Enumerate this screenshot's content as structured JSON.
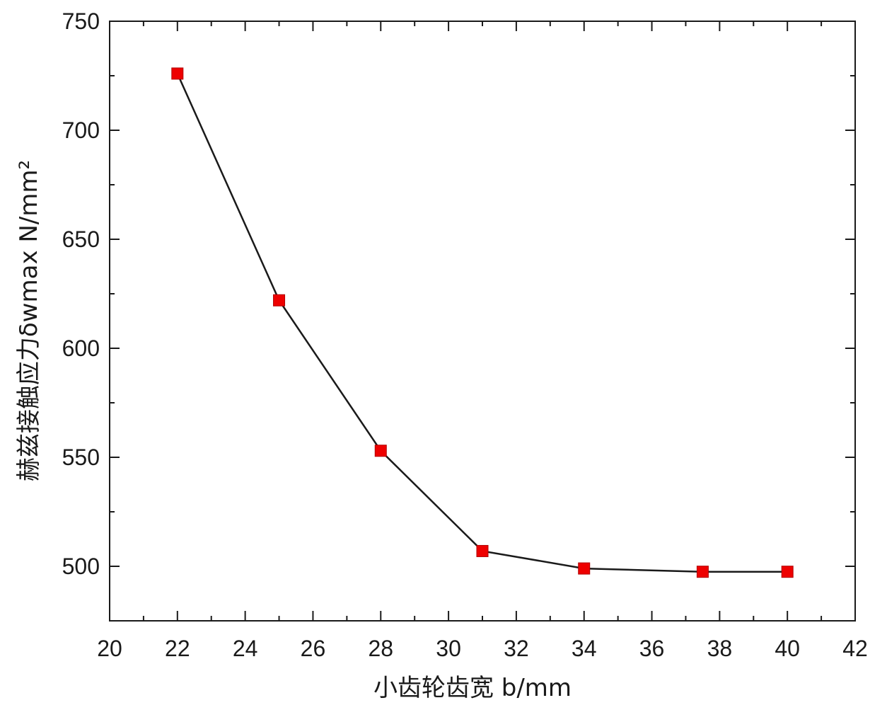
{
  "chart_data": {
    "type": "line",
    "title": "",
    "xlabel": "小齿轮齿宽 b/mm",
    "ylabel": "赫兹接触应力δwmax N/mm²",
    "xlim": [
      20,
      42
    ],
    "ylim": [
      475,
      750
    ],
    "x_ticks": [
      20,
      22,
      24,
      26,
      28,
      30,
      32,
      34,
      36,
      38,
      40,
      42
    ],
    "y_ticks": [
      500,
      550,
      600,
      650,
      700,
      750
    ],
    "grid": false,
    "legend": "none",
    "marker": "square",
    "colors": {
      "marker": "#ee0000",
      "line": "#1a1a1a",
      "axis": "#1a1a1a"
    },
    "series": [
      {
        "x": [
          22,
          25,
          28,
          31,
          34,
          37.5,
          40
        ],
        "values": [
          726,
          622,
          553,
          507,
          499,
          497.5,
          497.5
        ]
      }
    ]
  }
}
